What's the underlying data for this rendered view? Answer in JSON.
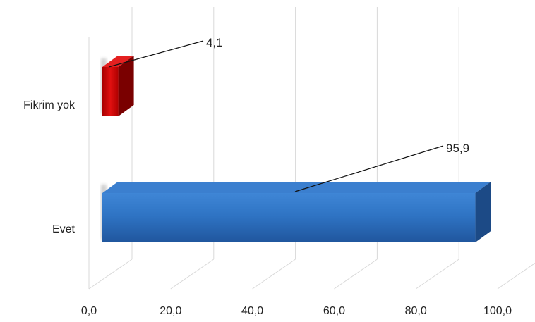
{
  "chart_data": {
    "type": "bar",
    "orientation": "horizontal",
    "style": "3d",
    "categories": [
      "Fikrim yok",
      "Evet"
    ],
    "values": [
      4.1,
      95.9
    ],
    "value_labels": [
      "4,1",
      "95,9"
    ],
    "colors": [
      "#c00000",
      "#2e75c8"
    ],
    "xlim": [
      0,
      100
    ],
    "ticks": [
      0,
      20,
      40,
      60,
      80,
      100
    ],
    "tick_labels": [
      "0,0",
      "20,0",
      "40,0",
      "60,0",
      "80,0",
      "100,0"
    ],
    "grid": true,
    "legend": "none"
  }
}
